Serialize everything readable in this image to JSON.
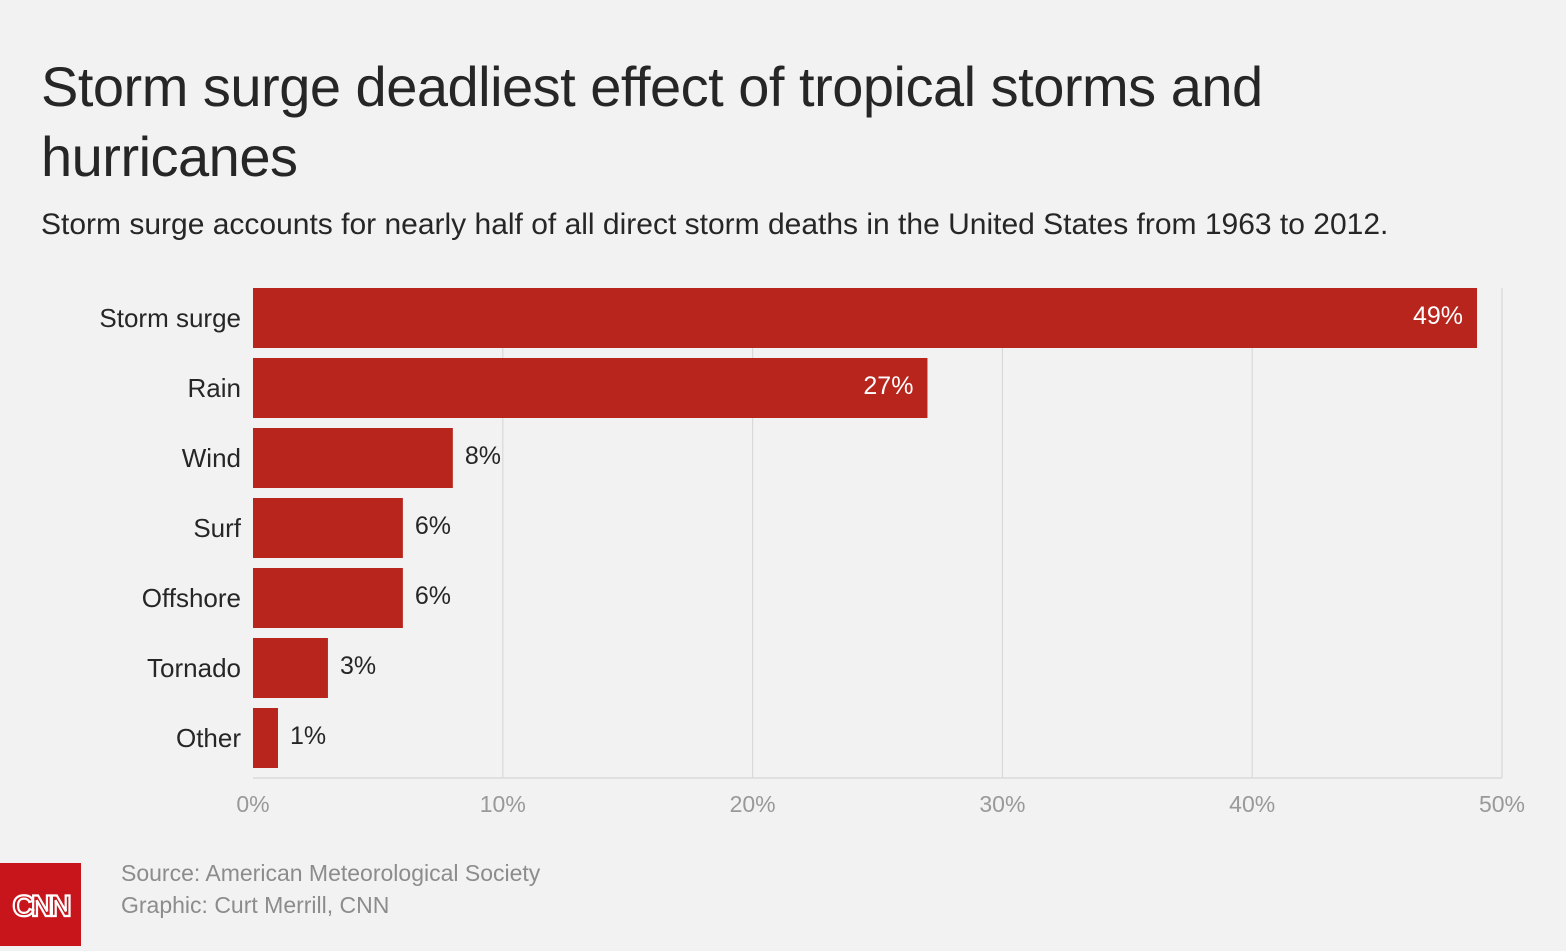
{
  "header": {
    "title": "Storm surge deadliest effect of tropical storms and hurricanes",
    "subtitle": "Storm surge accounts for nearly half of all direct storm deaths in the United States from 1963 to 2012."
  },
  "chart_data": {
    "type": "bar",
    "orientation": "horizontal",
    "categories": [
      "Storm surge",
      "Rain",
      "Wind",
      "Surf",
      "Offshore",
      "Tornado",
      "Other"
    ],
    "values": [
      49,
      27,
      8,
      6,
      6,
      3,
      1
    ],
    "data_labels": [
      "49%",
      "27%",
      "8%",
      "6%",
      "6%",
      "3%",
      "1%"
    ],
    "xlim": [
      0,
      50
    ],
    "x_ticks": [
      0,
      10,
      20,
      30,
      40,
      50
    ],
    "x_tick_labels": [
      "0%",
      "10%",
      "20%",
      "30%",
      "40%",
      "50%"
    ],
    "grid": "vertical",
    "colors": {
      "bar": "#b8251c",
      "grid": "#d9d9d9",
      "axis_text": "#999999",
      "label_text": "#262626",
      "inside_label_text": "#ffffff"
    }
  },
  "footer": {
    "source": "Source: American Meteorological Society",
    "credit": "Graphic: Curt Merrill, CNN"
  },
  "logo": {
    "text": "CNN",
    "color": "#c8141b"
  }
}
